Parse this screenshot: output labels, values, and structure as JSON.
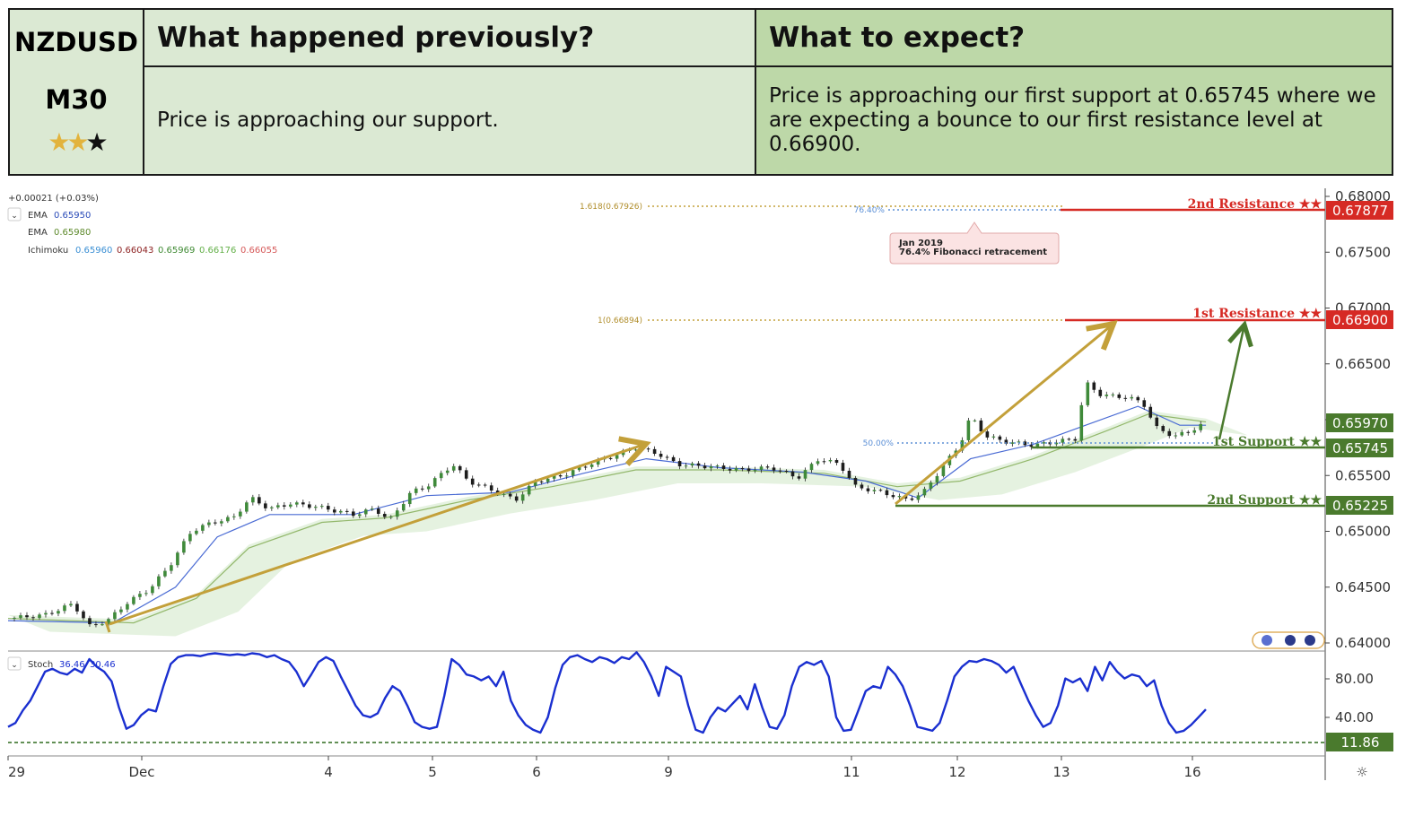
{
  "header": {
    "pair": "NZDUSD",
    "timeframe": "M30",
    "rating": {
      "filled": 2,
      "total": 3
    },
    "col2_title": "What happened previously?",
    "col3_title": "What to expect?",
    "col2_text": "Price is approaching our support.",
    "col3_text": "Price is approaching our first support at 0.65745 where we are expecting a bounce to our first resistance level at 0.66900."
  },
  "legend": {
    "change": "+0.00021 (+0.03%)",
    "ema1_label": "EMA",
    "ema1_value": "0.65950",
    "ema2_label": "EMA",
    "ema2_value": "0.65980",
    "ichimoku_label": "Ichimoku",
    "ichimoku_values": [
      "0.65960",
      "0.66043",
      "0.65969",
      "0.66176",
      "0.66055"
    ]
  },
  "chart_data": {
    "type": "line",
    "title": "",
    "xlabel": "",
    "ylabel": "",
    "x_ticks": [
      "29",
      "Dec",
      "4",
      "5",
      "6",
      "9",
      "11",
      "12",
      "13",
      "16"
    ],
    "y_ticks": [
      "0.68000",
      "0.67500",
      "0.67000",
      "0.66500",
      "0.66000",
      "0.65500",
      "0.65000",
      "0.64500",
      "0.64000"
    ],
    "ylim": [
      0.6398,
      0.6805
    ],
    "grid": false,
    "price_path": [
      {
        "t": 0,
        "p": 0.6422
      },
      {
        "t": 0.35,
        "p": 0.6425
      },
      {
        "t": 0.62,
        "p": 0.6435
      },
      {
        "t": 0.78,
        "p": 0.6415
      },
      {
        "t": 0.95,
        "p": 0.642
      },
      {
        "t": 1.15,
        "p": 0.6437
      },
      {
        "t": 1.35,
        "p": 0.6448
      },
      {
        "t": 1.55,
        "p": 0.647
      },
      {
        "t": 1.75,
        "p": 0.65
      },
      {
        "t": 1.95,
        "p": 0.6508
      },
      {
        "t": 2.15,
        "p": 0.6512
      },
      {
        "t": 2.32,
        "p": 0.653
      },
      {
        "t": 2.5,
        "p": 0.652
      },
      {
        "t": 2.7,
        "p": 0.6525
      },
      {
        "t": 2.95,
        "p": 0.6522
      },
      {
        "t": 3.3,
        "p": 0.6515
      },
      {
        "t": 3.5,
        "p": 0.652
      },
      {
        "t": 3.65,
        "p": 0.651
      },
      {
        "t": 3.85,
        "p": 0.6535
      },
      {
        "t": 4.0,
        "p": 0.654
      },
      {
        "t": 4.25,
        "p": 0.656
      },
      {
        "t": 4.4,
        "p": 0.6545
      },
      {
        "t": 4.6,
        "p": 0.6538
      },
      {
        "t": 4.85,
        "p": 0.6528
      },
      {
        "t": 5.05,
        "p": 0.6545
      },
      {
        "t": 5.3,
        "p": 0.655
      },
      {
        "t": 5.55,
        "p": 0.656
      },
      {
        "t": 5.8,
        "p": 0.6568
      },
      {
        "t": 6.0,
        "p": 0.6575
      },
      {
        "t": 6.2,
        "p": 0.657
      },
      {
        "t": 6.4,
        "p": 0.656
      },
      {
        "t": 6.7,
        "p": 0.6558
      },
      {
        "t": 7.0,
        "p": 0.6555
      },
      {
        "t": 7.3,
        "p": 0.6557
      },
      {
        "t": 7.55,
        "p": 0.6548
      },
      {
        "t": 7.75,
        "p": 0.6565
      },
      {
        "t": 7.95,
        "p": 0.656
      },
      {
        "t": 8.1,
        "p": 0.654
      },
      {
        "t": 8.35,
        "p": 0.6535
      },
      {
        "t": 8.6,
        "p": 0.6528
      },
      {
        "t": 8.75,
        "p": 0.6535
      },
      {
        "t": 8.95,
        "p": 0.656
      },
      {
        "t": 9.1,
        "p": 0.6578
      },
      {
        "t": 9.2,
        "p": 0.6603
      },
      {
        "t": 9.35,
        "p": 0.6585
      },
      {
        "t": 9.55,
        "p": 0.658
      },
      {
        "t": 9.8,
        "p": 0.6577
      },
      {
        "t": 10.0,
        "p": 0.658
      },
      {
        "t": 10.2,
        "p": 0.6583
      },
      {
        "t": 10.3,
        "p": 0.6633
      },
      {
        "t": 10.45,
        "p": 0.6622
      },
      {
        "t": 10.7,
        "p": 0.662
      },
      {
        "t": 10.85,
        "p": 0.6615
      },
      {
        "t": 10.97,
        "p": 0.6593
      },
      {
        "t": 11.15,
        "p": 0.6585
      },
      {
        "t": 11.3,
        "p": 0.659
      },
      {
        "t": 11.45,
        "p": 0.6597
      }
    ],
    "ema_fast": [
      {
        "t": 0,
        "p": 0.642
      },
      {
        "t": 1.0,
        "p": 0.6418
      },
      {
        "t": 1.6,
        "p": 0.645
      },
      {
        "t": 2.0,
        "p": 0.6495
      },
      {
        "t": 2.5,
        "p": 0.6515
      },
      {
        "t": 3.3,
        "p": 0.6515
      },
      {
        "t": 4.0,
        "p": 0.6532
      },
      {
        "t": 4.8,
        "p": 0.6535
      },
      {
        "t": 5.5,
        "p": 0.6552
      },
      {
        "t": 6.1,
        "p": 0.6565
      },
      {
        "t": 6.8,
        "p": 0.6557
      },
      {
        "t": 7.6,
        "p": 0.6553
      },
      {
        "t": 8.2,
        "p": 0.6545
      },
      {
        "t": 8.7,
        "p": 0.653
      },
      {
        "t": 9.2,
        "p": 0.6565
      },
      {
        "t": 9.8,
        "p": 0.6578
      },
      {
        "t": 10.3,
        "p": 0.6595
      },
      {
        "t": 10.8,
        "p": 0.6612
      },
      {
        "t": 11.2,
        "p": 0.6595
      },
      {
        "t": 11.45,
        "p": 0.6595
      }
    ],
    "ema_slow": [
      {
        "t": 0,
        "p": 0.6422
      },
      {
        "t": 1.2,
        "p": 0.6418
      },
      {
        "t": 1.8,
        "p": 0.644
      },
      {
        "t": 2.3,
        "p": 0.6485
      },
      {
        "t": 3.0,
        "p": 0.6508
      },
      {
        "t": 3.6,
        "p": 0.6512
      },
      {
        "t": 4.4,
        "p": 0.6528
      },
      {
        "t": 5.2,
        "p": 0.654
      },
      {
        "t": 6.0,
        "p": 0.6555
      },
      {
        "t": 6.8,
        "p": 0.6555
      },
      {
        "t": 7.8,
        "p": 0.6552
      },
      {
        "t": 8.5,
        "p": 0.654
      },
      {
        "t": 9.1,
        "p": 0.6545
      },
      {
        "t": 9.8,
        "p": 0.6565
      },
      {
        "t": 10.5,
        "p": 0.659
      },
      {
        "t": 10.9,
        "p": 0.6605
      },
      {
        "t": 11.45,
        "p": 0.6598
      }
    ],
    "levels": [
      {
        "name": "2nd Resistance",
        "value": "0.67877",
        "kind": "resistance"
      },
      {
        "name": "1st Resistance",
        "value": "0.66900",
        "kind": "resistance"
      },
      {
        "name": "1st Support",
        "value": "0.65745",
        "kind": "support"
      },
      {
        "name": "2nd Support",
        "value": "0.65225",
        "kind": "support"
      }
    ],
    "current_price": "0.65970",
    "fibonacci": {
      "ext_1618": "1.618(0.67926)",
      "ext_1": "1(0.66894)",
      "retr_764": "76.40%",
      "retr_50": "50.00%"
    },
    "note": {
      "line1": "Jan 2019",
      "line2": "76.4% Fibonacci retracement"
    }
  },
  "stochastic": {
    "label": "Stoch",
    "k_value": "36.46",
    "d_value": "30.46",
    "y_ticks": [
      "80.00",
      "40.00"
    ],
    "last_marker": "11.86",
    "ylim": [
      0,
      100
    ],
    "values": [
      18,
      22,
      35,
      45,
      60,
      75,
      78,
      74,
      72,
      78,
      74,
      88,
      80,
      75,
      65,
      38,
      16,
      20,
      30,
      36,
      34,
      60,
      83,
      90,
      92,
      92,
      91,
      93,
      94,
      93,
      92,
      93,
      92,
      94,
      93,
      90,
      92,
      88,
      85,
      75,
      60,
      72,
      85,
      90,
      86,
      70,
      55,
      40,
      30,
      28,
      32,
      48,
      60,
      55,
      40,
      23,
      18,
      16,
      18,
      50,
      88,
      82,
      72,
      70,
      66,
      70,
      60,
      75,
      45,
      30,
      20,
      15,
      12,
      28,
      58,
      82,
      90,
      92,
      88,
      85,
      90,
      88,
      84,
      90,
      88,
      95,
      85,
      70,
      50,
      80,
      75,
      70,
      40,
      15,
      12,
      28,
      38,
      34,
      42,
      50,
      36,
      62,
      38,
      18,
      16,
      30,
      60,
      80,
      85,
      82,
      86,
      70,
      28,
      14,
      15,
      35,
      55,
      60,
      58,
      80,
      72,
      60,
      40,
      18,
      16,
      14,
      22,
      45,
      70,
      80,
      86,
      85,
      88,
      86,
      82,
      74,
      80,
      62,
      45,
      30,
      18,
      22,
      40,
      68,
      64,
      68,
      55,
      80,
      66,
      85,
      75,
      68,
      72,
      70,
      60,
      66,
      40,
      22,
      12,
      14,
      20,
      28,
      36
    ]
  },
  "time_axis": {
    "settings_icon": "gear-icon"
  },
  "colors": {
    "resistance": "#d62a24",
    "support": "#4a7a2d",
    "price_tag": "#4a7a2d",
    "arrow_gold": "#c3a03a",
    "arrow_green": "#4a7a2d",
    "stoch_line": "#1a2fd0",
    "ema_fast": "#4a6bd4",
    "ema_slow": "#93b86c",
    "header_light": "#dbe9d3",
    "header_dark": "#bdd8a8"
  }
}
